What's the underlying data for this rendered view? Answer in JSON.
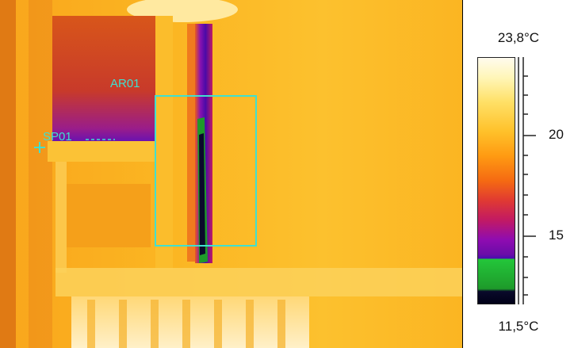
{
  "image": {
    "description_icon": "thermal-image"
  },
  "markers": {
    "area": {
      "label": "AR01"
    },
    "spot": {
      "label": "SP01"
    }
  },
  "scale": {
    "max_label": "23,8°C",
    "min_label": "11,5°C",
    "ticks": [
      "20",
      "15"
    ]
  },
  "colors": {
    "marker": "#3fe0d0",
    "warm": "#ffb820",
    "cold": "#5a0aa8"
  }
}
